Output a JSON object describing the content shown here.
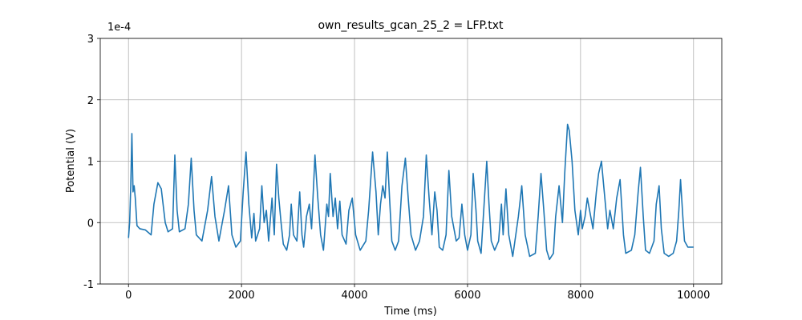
{
  "chart_data": {
    "type": "line",
    "title": "own_results_gcan_25_2 = LFP.txt",
    "x_label": "Time (ms)",
    "y_label": "Potential (V)",
    "y_offset_label": "1e-4",
    "grid": true,
    "xlim": [
      -500,
      10500
    ],
    "xticks": [
      0,
      2000,
      4000,
      6000,
      8000,
      10000
    ],
    "ylim": [
      -1,
      3
    ],
    "yticks": [
      -1,
      0,
      1,
      2,
      3
    ],
    "x": [
      0,
      20,
      40,
      60,
      80,
      100,
      120,
      150,
      200,
      300,
      400,
      450,
      520,
      580,
      650,
      700,
      780,
      820,
      860,
      900,
      1000,
      1060,
      1110,
      1160,
      1200,
      1300,
      1400,
      1470,
      1530,
      1600,
      1700,
      1770,
      1830,
      1900,
      1980,
      2030,
      2080,
      2130,
      2180,
      2220,
      2250,
      2320,
      2360,
      2400,
      2440,
      2480,
      2540,
      2580,
      2620,
      2660,
      2700,
      2740,
      2800,
      2850,
      2880,
      2920,
      2980,
      3030,
      3070,
      3100,
      3150,
      3200,
      3240,
      3300,
      3350,
      3400,
      3450,
      3510,
      3540,
      3570,
      3620,
      3660,
      3700,
      3740,
      3780,
      3850,
      3900,
      3960,
      4020,
      4100,
      4200,
      4250,
      4320,
      4380,
      4420,
      4460,
      4500,
      4540,
      4580,
      4620,
      4660,
      4720,
      4780,
      4840,
      4900,
      4950,
      5000,
      5080,
      5150,
      5220,
      5270,
      5320,
      5370,
      5420,
      5460,
      5500,
      5560,
      5620,
      5670,
      5720,
      5800,
      5850,
      5900,
      5950,
      6000,
      6060,
      6100,
      6150,
      6180,
      6240,
      6300,
      6340,
      6380,
      6420,
      6480,
      6550,
      6600,
      6630,
      6680,
      6730,
      6800,
      6900,
      6960,
      7020,
      7100,
      7200,
      7250,
      7300,
      7350,
      7400,
      7450,
      7520,
      7560,
      7620,
      7680,
      7720,
      7770,
      7800,
      7850,
      7900,
      7960,
      8000,
      8030,
      8080,
      8120,
      8180,
      8220,
      8280,
      8320,
      8370,
      8420,
      8480,
      8520,
      8580,
      8640,
      8700,
      8760,
      8800,
      8900,
      8960,
      9020,
      9060,
      9110,
      9150,
      9220,
      9300,
      9340,
      9390,
      9430,
      9480,
      9560,
      9640,
      9700,
      9740,
      9770,
      9810,
      9840,
      9900,
      10000
    ],
    "series": [
      {
        "name": "LFP",
        "color": "#1f77b4",
        "values": [
          -0.25,
          0.0,
          0.6,
          1.45,
          0.5,
          0.6,
          0.4,
          -0.05,
          -0.1,
          -0.12,
          -0.2,
          0.3,
          0.65,
          0.55,
          0.0,
          -0.15,
          -0.1,
          1.1,
          0.2,
          -0.15,
          -0.1,
          0.3,
          1.05,
          0.2,
          -0.2,
          -0.3,
          0.2,
          0.75,
          0.1,
          -0.3,
          0.2,
          0.6,
          -0.2,
          -0.4,
          -0.3,
          0.5,
          1.15,
          0.3,
          -0.25,
          0.15,
          -0.3,
          -0.1,
          0.6,
          0.0,
          0.2,
          -0.3,
          0.4,
          -0.2,
          0.95,
          0.4,
          0.0,
          -0.35,
          -0.45,
          -0.2,
          0.3,
          -0.2,
          -0.3,
          0.5,
          -0.2,
          -0.4,
          0.1,
          0.3,
          -0.1,
          1.1,
          0.4,
          -0.2,
          -0.45,
          0.3,
          0.1,
          0.8,
          0.1,
          0.4,
          -0.1,
          0.35,
          -0.2,
          -0.35,
          0.2,
          0.4,
          -0.2,
          -0.45,
          -0.3,
          0.2,
          1.15,
          0.5,
          -0.2,
          0.3,
          0.6,
          0.4,
          1.15,
          0.4,
          -0.3,
          -0.45,
          -0.3,
          0.6,
          1.05,
          0.4,
          -0.2,
          -0.45,
          -0.3,
          0.1,
          1.1,
          0.4,
          -0.2,
          0.5,
          0.2,
          -0.4,
          -0.45,
          -0.2,
          0.85,
          0.1,
          -0.3,
          -0.25,
          0.3,
          -0.2,
          -0.45,
          -0.2,
          0.8,
          0.2,
          -0.3,
          -0.5,
          0.4,
          1.0,
          0.3,
          -0.3,
          -0.45,
          -0.3,
          0.3,
          -0.2,
          0.55,
          -0.2,
          -0.55,
          0.1,
          0.6,
          -0.2,
          -0.55,
          -0.5,
          0.1,
          0.8,
          0.2,
          -0.45,
          -0.6,
          -0.5,
          0.1,
          0.6,
          0.0,
          0.8,
          1.6,
          1.5,
          1.0,
          0.2,
          -0.2,
          0.2,
          -0.1,
          0.1,
          0.4,
          0.1,
          -0.1,
          0.5,
          0.8,
          1.0,
          0.5,
          -0.1,
          0.2,
          -0.1,
          0.4,
          0.7,
          -0.2,
          -0.5,
          -0.45,
          -0.2,
          0.5,
          0.9,
          0.1,
          -0.45,
          -0.5,
          -0.3,
          0.3,
          0.6,
          -0.1,
          -0.5,
          -0.55,
          -0.5,
          -0.3,
          0.2,
          0.7,
          0.1,
          -0.3,
          -0.4,
          -0.4
        ]
      }
    ]
  }
}
